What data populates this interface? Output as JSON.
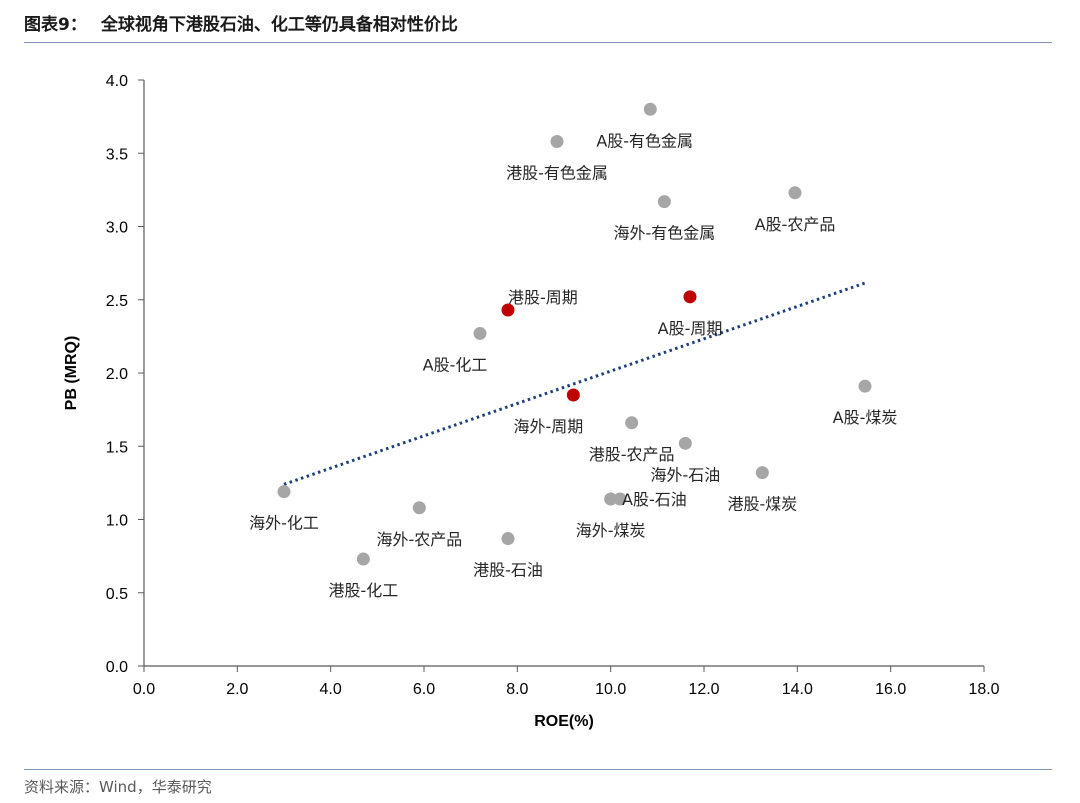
{
  "figure": {
    "label": "图表9：",
    "title": "全球视角下港股石油、化工等仍具备相对性价比",
    "source": "资料来源：Wind，华泰研究"
  },
  "colors": {
    "point_default": "#a6a6a6",
    "point_highlight": "#c00000",
    "trendline": "#1f3f7a",
    "axis": "#595959",
    "rule": "#7f94b5"
  },
  "chart_data": {
    "type": "scatter",
    "xlabel": "ROE(%)",
    "ylabel": "PB (MRQ)",
    "xlim": [
      0,
      18
    ],
    "ylim": [
      0,
      4
    ],
    "xticks": [
      "0.0",
      "2.0",
      "4.0",
      "6.0",
      "8.0",
      "10.0",
      "12.0",
      "14.0",
      "16.0",
      "18.0"
    ],
    "yticks": [
      "0.0",
      "0.5",
      "1.0",
      "1.5",
      "2.0",
      "2.5",
      "3.0",
      "3.5",
      "4.0"
    ],
    "grid": false,
    "legend": "none",
    "points": [
      {
        "label": "A股-有色金属",
        "x": 10.85,
        "y": 3.8,
        "highlight": false,
        "label_anchor": "below-right"
      },
      {
        "label": "港股-有色金属",
        "x": 8.85,
        "y": 3.58,
        "highlight": false,
        "label_anchor": "below"
      },
      {
        "label": "海外-有色金属",
        "x": 11.15,
        "y": 3.17,
        "highlight": false,
        "label_anchor": "below"
      },
      {
        "label": "A股-农产品",
        "x": 13.95,
        "y": 3.23,
        "highlight": false,
        "label_anchor": "below"
      },
      {
        "label": "港股-周期",
        "x": 7.8,
        "y": 2.43,
        "highlight": true,
        "label_anchor": "above-right"
      },
      {
        "label": "A股-周期",
        "x": 11.7,
        "y": 2.52,
        "highlight": true,
        "label_anchor": "below"
      },
      {
        "label": "A股-化工",
        "x": 7.2,
        "y": 2.27,
        "highlight": false,
        "label_anchor": "below-left"
      },
      {
        "label": "海外-周期",
        "x": 9.2,
        "y": 1.85,
        "highlight": true,
        "label_anchor": "below-left"
      },
      {
        "label": "A股-煤炭",
        "x": 15.45,
        "y": 1.91,
        "highlight": false,
        "label_anchor": "below"
      },
      {
        "label": "港股-农产品",
        "x": 10.45,
        "y": 1.66,
        "highlight": false,
        "label_anchor": "below"
      },
      {
        "label": "海外-石油",
        "x": 11.6,
        "y": 1.52,
        "highlight": false,
        "label_anchor": "below"
      },
      {
        "label": "港股-煤炭",
        "x": 13.25,
        "y": 1.32,
        "highlight": false,
        "label_anchor": "below"
      },
      {
        "label": "A股-石油",
        "x": 10.2,
        "y": 1.14,
        "highlight": false,
        "label_anchor": "right"
      },
      {
        "label": "海外-化工",
        "x": 3.0,
        "y": 1.19,
        "highlight": false,
        "label_anchor": "below"
      },
      {
        "label": "海外-农产品",
        "x": 5.9,
        "y": 1.08,
        "highlight": false,
        "label_anchor": "below"
      },
      {
        "label": "海外-煤炭",
        "x": 10.0,
        "y": 1.14,
        "highlight": false,
        "label_anchor": "below"
      },
      {
        "label": "港股-石油",
        "x": 7.8,
        "y": 0.87,
        "highlight": false,
        "label_anchor": "below"
      },
      {
        "label": "港股-化工",
        "x": 4.7,
        "y": 0.73,
        "highlight": false,
        "label_anchor": "below"
      }
    ],
    "trendline": {
      "style": "dotted",
      "x_start": 3.0,
      "y_start": 1.24,
      "x_end": 15.5,
      "y_end": 2.62
    }
  }
}
